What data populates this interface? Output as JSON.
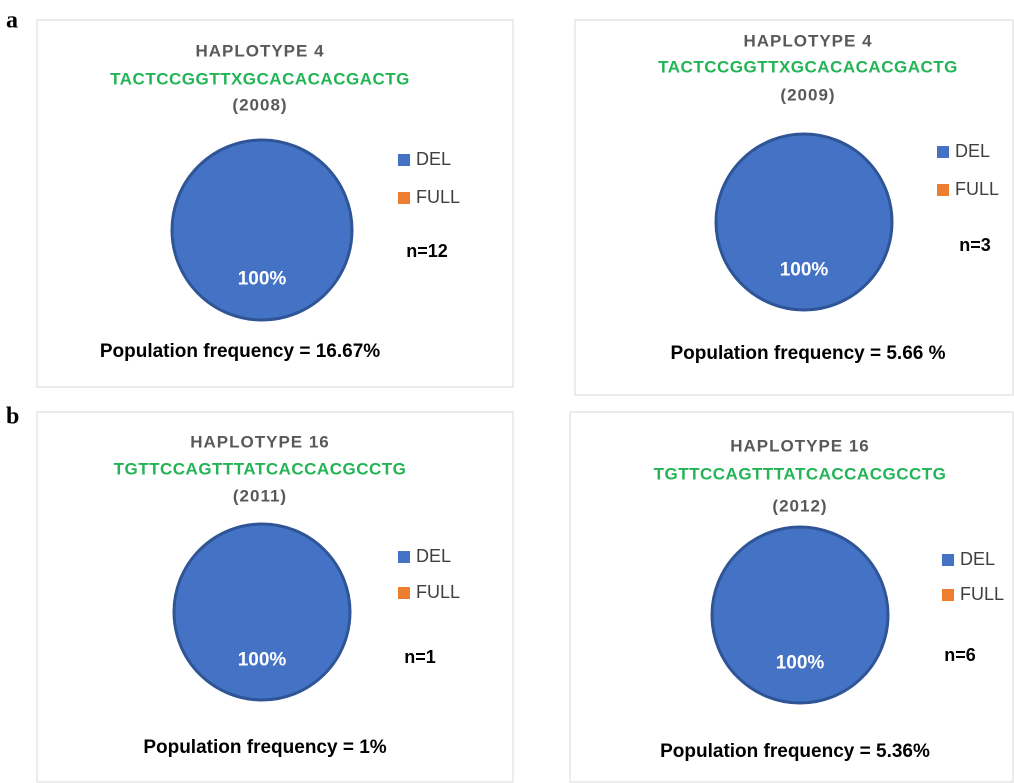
{
  "panel_labels": [
    "a",
    "b"
  ],
  "chart_data": [
    {
      "type": "pie",
      "title": "HAPLOTYPE 4",
      "subtitle": "TACTCCGGTTXGCACACACGACTG",
      "year": "(2008)",
      "categories": [
        "DEL",
        "FULL"
      ],
      "values": [
        100,
        0
      ],
      "value_labels": [
        "100%",
        null
      ],
      "colors": [
        "#4472c4",
        "#ed7d31"
      ],
      "annotations": [
        "n=12",
        "Population frequency = 16.67%"
      ],
      "legend": "right"
    },
    {
      "type": "pie",
      "title": "HAPLOTYPE 4",
      "subtitle": "TACTCCGGTTXGCACACACGACTG",
      "year": "(2009)",
      "categories": [
        "DEL",
        "FULL"
      ],
      "values": [
        100,
        0
      ],
      "value_labels": [
        "100%",
        null
      ],
      "colors": [
        "#4472c4",
        "#ed7d31"
      ],
      "annotations": [
        "n=3",
        "Population frequency = 5.66 %"
      ],
      "legend": "right"
    },
    {
      "type": "pie",
      "title": "HAPLOTYPE 16",
      "subtitle": "TGTTCCAGTTTATCACCACGCCTG",
      "year": "(2011)",
      "categories": [
        "DEL",
        "FULL"
      ],
      "values": [
        100,
        0
      ],
      "value_labels": [
        "100%",
        null
      ],
      "colors": [
        "#4472c4",
        "#ed7d31"
      ],
      "annotations": [
        "n=1",
        "Population frequency = 1%"
      ],
      "legend": "right"
    },
    {
      "type": "pie",
      "title": "HAPLOTYPE 16",
      "subtitle": "TGTTCCAGTTTATCACCACGCCTG",
      "year": "(2012)",
      "categories": [
        "DEL",
        "FULL"
      ],
      "values": [
        100,
        0
      ],
      "value_labels": [
        "100%",
        null
      ],
      "colors": [
        "#4472c4",
        "#ed7d31"
      ],
      "annotations": [
        "n=6",
        "Population frequency = 5.36%"
      ],
      "legend": "right"
    }
  ]
}
